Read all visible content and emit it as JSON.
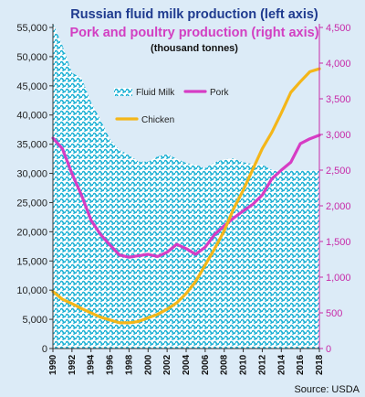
{
  "chart_data": {
    "type": "area",
    "title": "Russian fluid milk production (left axis)",
    "subtitle": "Pork and poultry production (right axis)",
    "units_note": "(thousand tonnes)",
    "source": "Source: USDA",
    "x": [
      1990,
      1991,
      1992,
      1993,
      1994,
      1995,
      1996,
      1997,
      1998,
      1999,
      2000,
      2001,
      2002,
      2003,
      2004,
      2005,
      2006,
      2007,
      2008,
      2009,
      2010,
      2011,
      2012,
      2013,
      2014,
      2015,
      2016,
      2017,
      2018
    ],
    "x_ticks": [
      "1990",
      "1992",
      "1994",
      "1996",
      "1998",
      "2000",
      "2002",
      "2004",
      "2006",
      "2008",
      "2010",
      "2012",
      "2014",
      "2016",
      "2018"
    ],
    "y_left": {
      "ylim": [
        0,
        55000
      ],
      "ticks": [
        "0",
        "5,000",
        "10,000",
        "15,000",
        "20,000",
        "25,000",
        "30,000",
        "35,000",
        "40,000",
        "45,000",
        "50,000",
        "55,000"
      ]
    },
    "y_right": {
      "ylim": [
        0,
        4500
      ],
      "ticks": [
        "0",
        "500",
        "1,000",
        "1,500",
        "2,000",
        "2,500",
        "3,000",
        "3,500",
        "4,000",
        "4,500"
      ]
    },
    "series": [
      {
        "name": "Fluid Milk",
        "axis": "left",
        "style": "area",
        "color": "#20b7d8",
        "values": [
          55700,
          51900,
          47200,
          46400,
          42200,
          39200,
          35800,
          34000,
          33200,
          32000,
          32000,
          32900,
          33300,
          32500,
          31800,
          31500,
          30900,
          31900,
          32400,
          32600,
          31900,
          31600,
          31500,
          30600,
          30500,
          30500,
          30500,
          30500,
          30500
        ]
      },
      {
        "name": "Pork",
        "axis": "right",
        "style": "line",
        "color": "#d63cc4",
        "values": [
          2950,
          2800,
          2450,
          2150,
          1800,
          1600,
          1450,
          1310,
          1280,
          1300,
          1320,
          1290,
          1350,
          1460,
          1400,
          1320,
          1420,
          1600,
          1720,
          1830,
          1930,
          2020,
          2150,
          2380,
          2500,
          2610,
          2870,
          2940,
          2990
        ]
      },
      {
        "name": "Chicken",
        "axis": "right",
        "style": "line",
        "color": "#f4b619",
        "values": [
          800,
          690,
          630,
          560,
          500,
          440,
          400,
          360,
          360,
          380,
          430,
          480,
          550,
          640,
          770,
          940,
          1170,
          1400,
          1650,
          1960,
          2220,
          2510,
          2800,
          3030,
          3300,
          3590,
          3740,
          3880,
          3920
        ]
      }
    ]
  }
}
